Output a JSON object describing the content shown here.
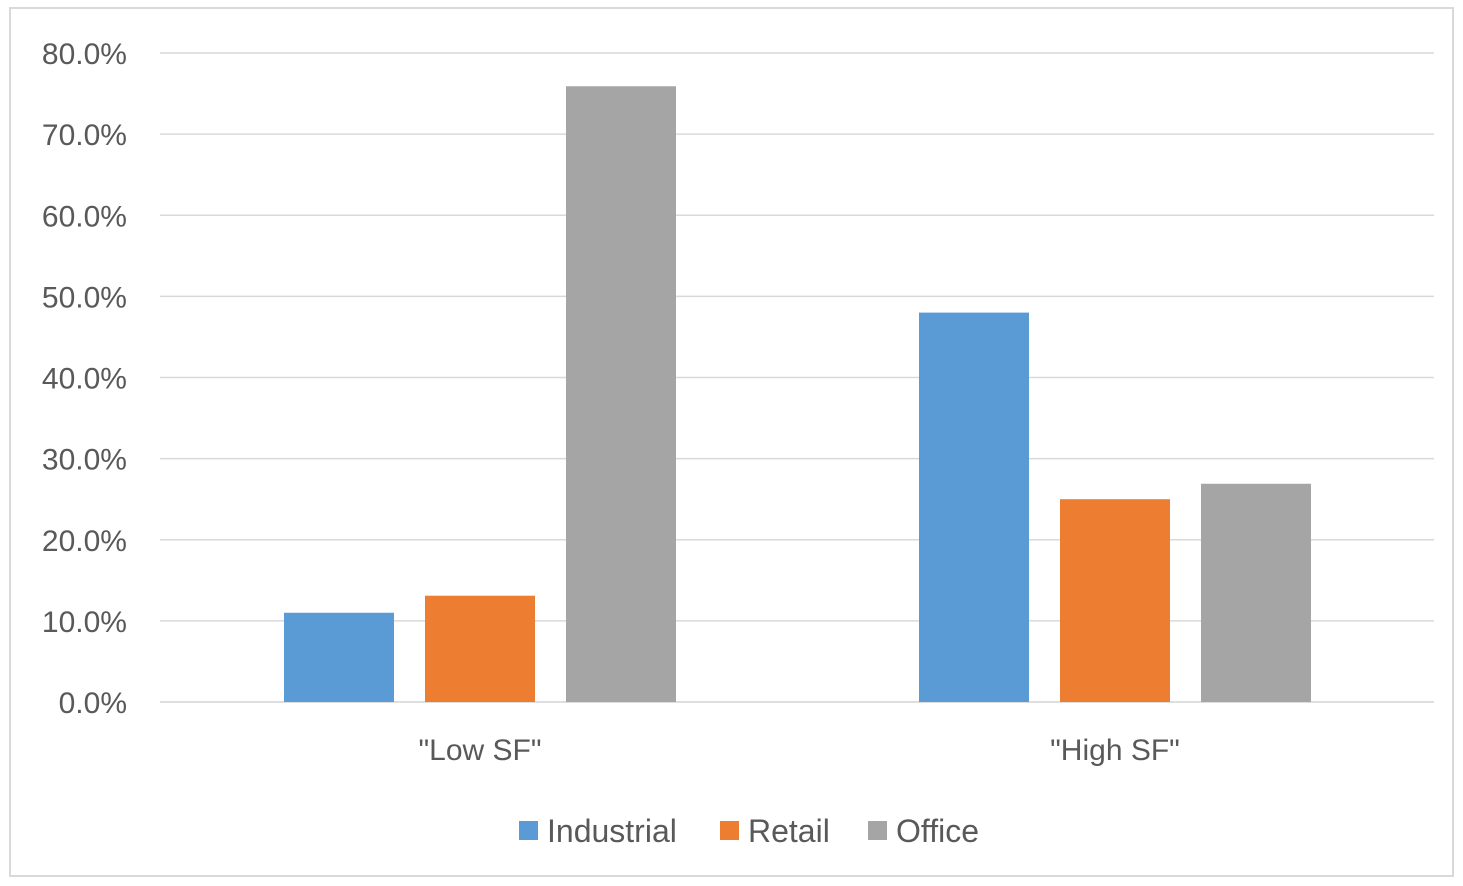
{
  "chart_data": {
    "type": "bar",
    "categories": [
      "\"Low SF\"",
      "\"High SF\""
    ],
    "series": [
      {
        "name": "Industrial",
        "color": "#5b9bd5",
        "values": [
          11.0,
          48.0
        ]
      },
      {
        "name": "Retail",
        "color": "#ed7d31",
        "values": [
          13.1,
          25.0
        ]
      },
      {
        "name": "Office",
        "color": "#a5a5a5",
        "values": [
          75.9,
          26.9
        ]
      }
    ],
    "yticks": [
      "0.0%",
      "10.0%",
      "20.0%",
      "30.0%",
      "40.0%",
      "50.0%",
      "60.0%",
      "70.0%",
      "80.0%"
    ],
    "ylim": [
      0,
      80
    ],
    "grid": true,
    "gridline_color": "#d9d9d9",
    "legend_position": "bottom"
  }
}
